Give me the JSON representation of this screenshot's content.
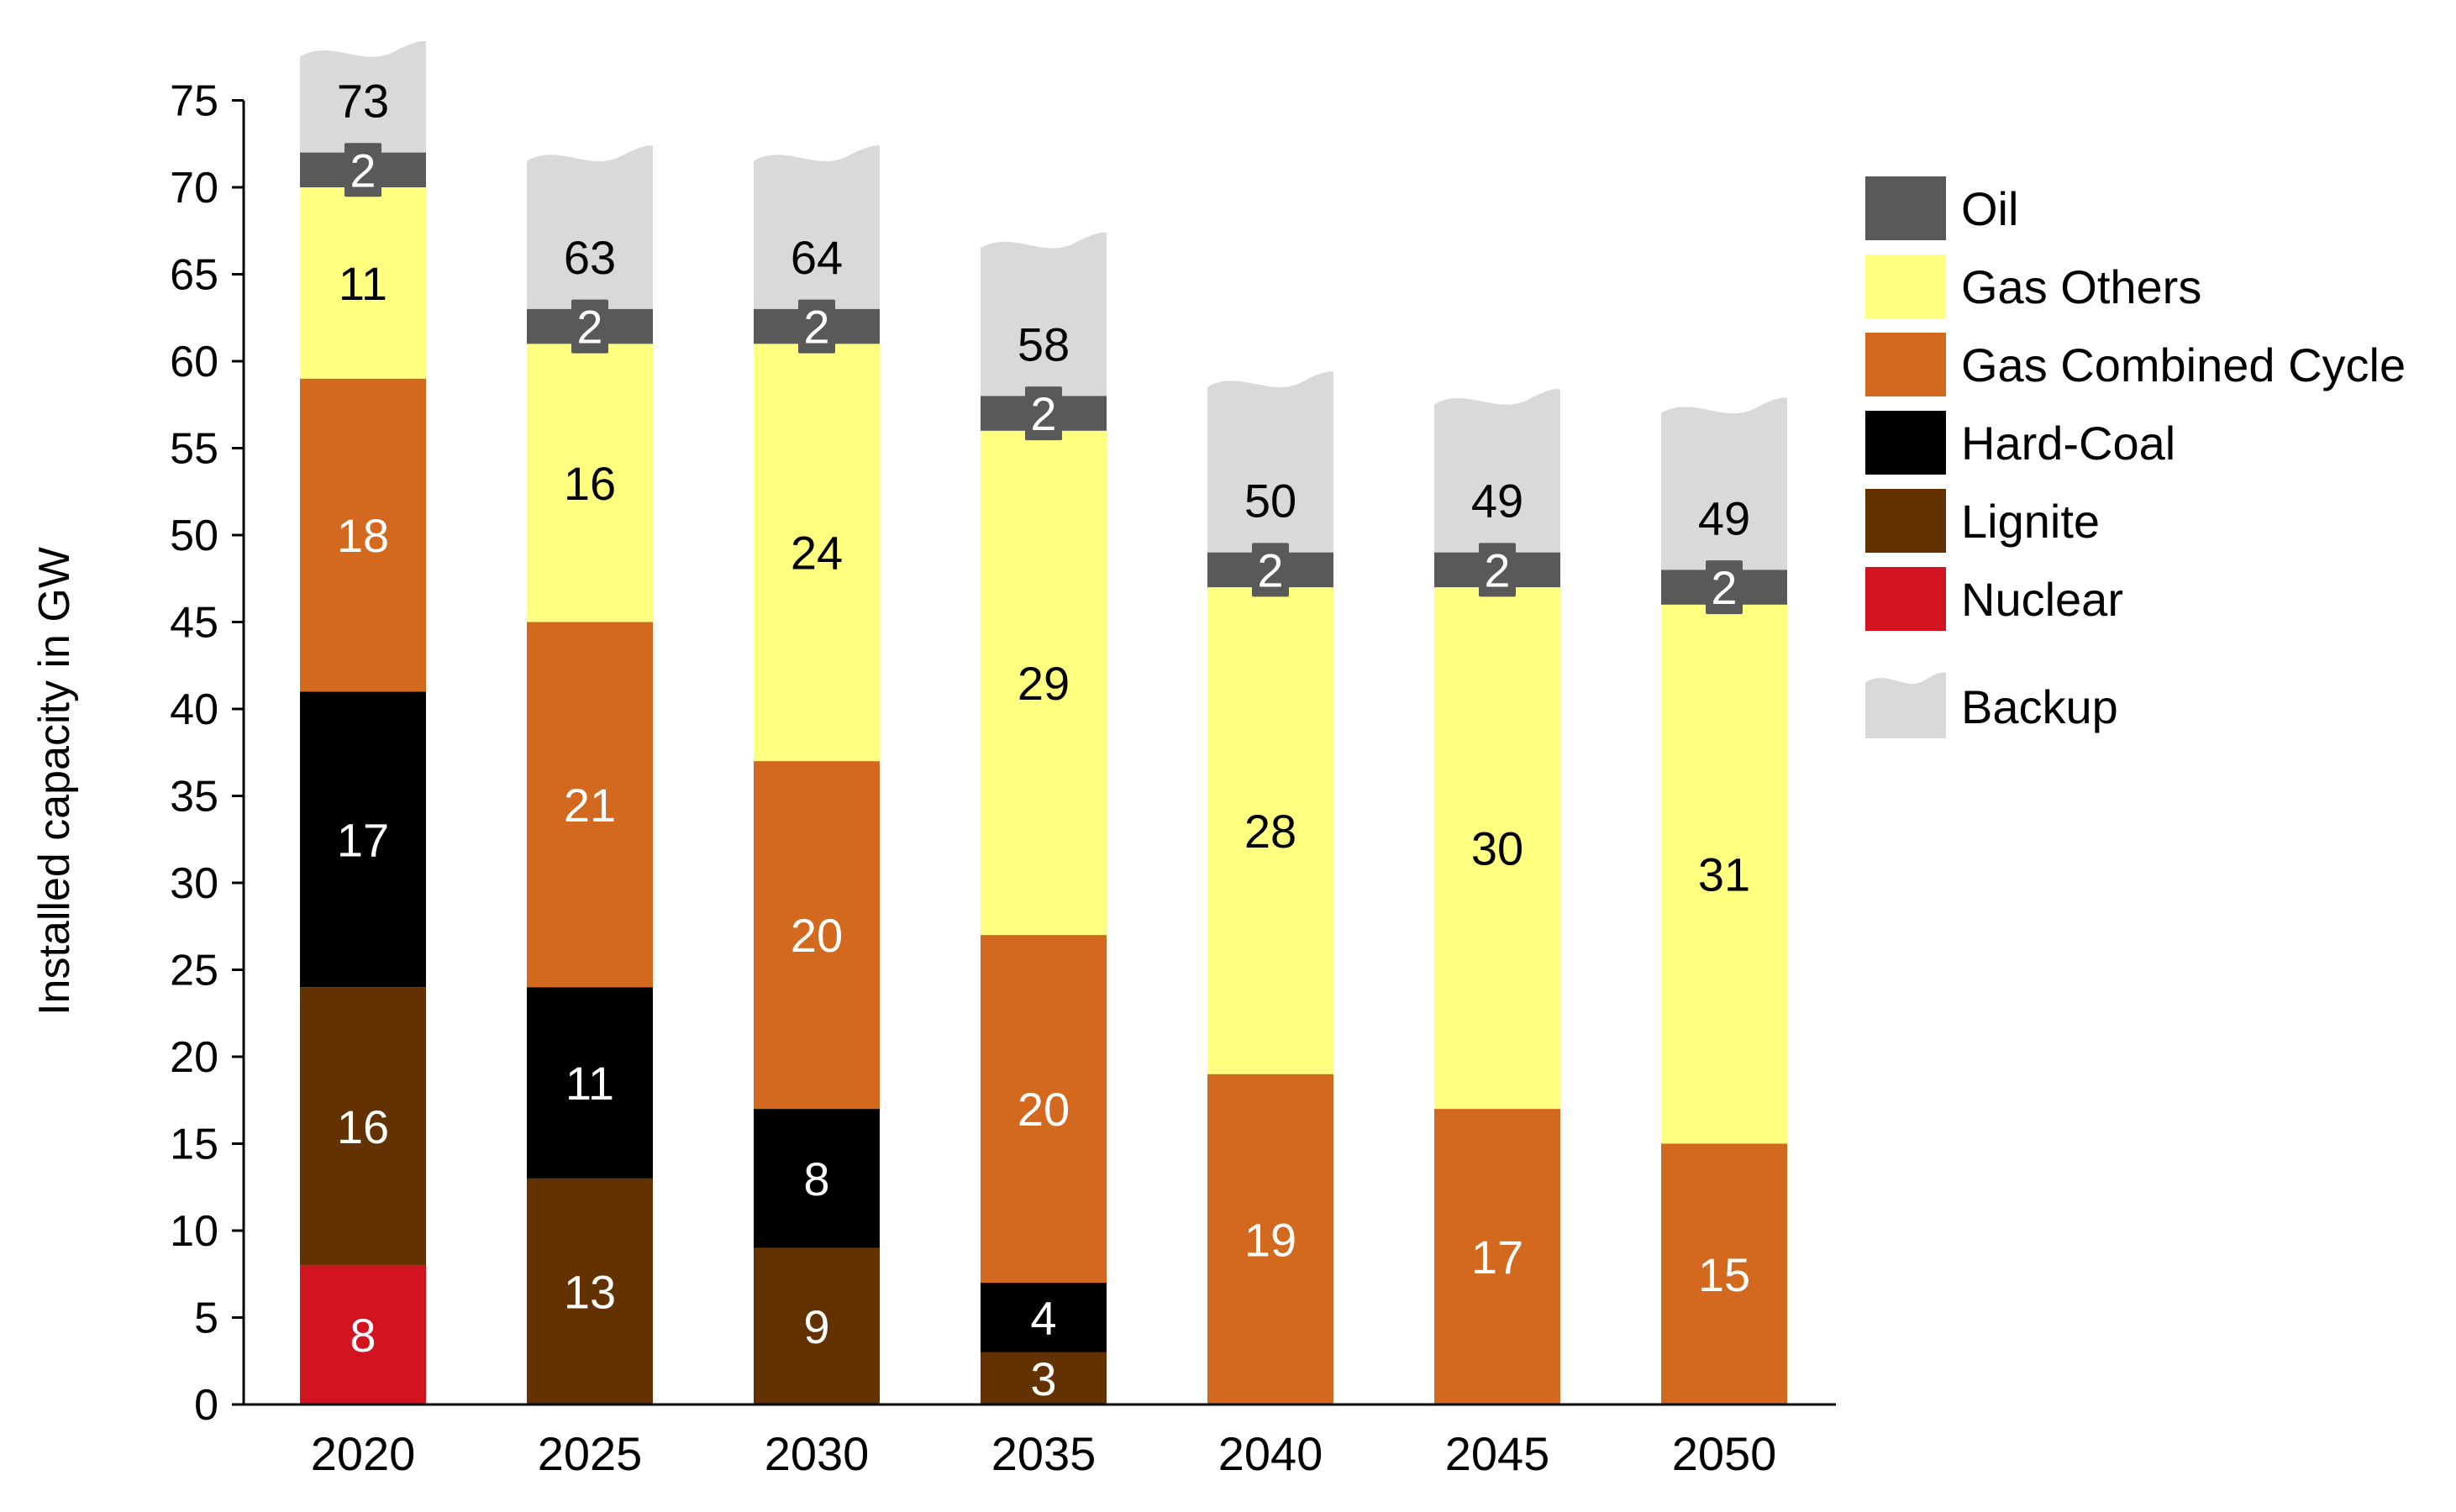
{
  "chart_data": {
    "type": "bar",
    "stacked": true,
    "title": "",
    "xlabel": "",
    "ylabel": "Installed capacity  in GW",
    "ylim": [
      0,
      75
    ],
    "yticks": [
      0,
      5,
      10,
      15,
      20,
      25,
      30,
      35,
      40,
      45,
      50,
      55,
      60,
      65,
      70,
      75
    ],
    "grid": false,
    "legend_position": "right",
    "categories": [
      "2020",
      "2025",
      "2030",
      "2035",
      "2040",
      "2045",
      "2050"
    ],
    "series": [
      {
        "name": "Nuclear",
        "color": "#d21421",
        "label_color": "#ffffff",
        "values": [
          8,
          0,
          0,
          0,
          0,
          0,
          0
        ]
      },
      {
        "name": "Lignite",
        "color": "#643200",
        "label_color": "#ffffff",
        "values": [
          16,
          13,
          9,
          3,
          0,
          0,
          0
        ]
      },
      {
        "name": "Hard-Coal",
        "color": "#000000",
        "label_color": "#ffffff",
        "values": [
          17,
          11,
          8,
          4,
          0,
          0,
          0
        ]
      },
      {
        "name": "Gas Combined Cycle",
        "color": "#d2691e",
        "label_color": "#ffffff",
        "values": [
          18,
          21,
          20,
          20,
          19,
          17,
          15
        ]
      },
      {
        "name": "Gas Others",
        "color": "#ffff80",
        "label_color": "#000000",
        "values": [
          11,
          16,
          24,
          29,
          28,
          30,
          31
        ]
      },
      {
        "name": "Oil",
        "color": "#595959",
        "label_color": "#ffffff",
        "values": [
          2,
          2,
          2,
          2,
          2,
          2,
          2
        ]
      }
    ],
    "backup": {
      "name": "Backup",
      "color": "#d9d9d9",
      "label_values": [
        73,
        63,
        64,
        58,
        50,
        49,
        49
      ],
      "top_values": [
        78,
        72,
        72,
        67,
        59,
        58,
        57.5
      ]
    },
    "legend_entries": [
      "Oil",
      "Gas Others",
      "Gas Combined Cycle",
      "Hard-Coal",
      "Lignite",
      "Nuclear",
      "Backup"
    ]
  }
}
